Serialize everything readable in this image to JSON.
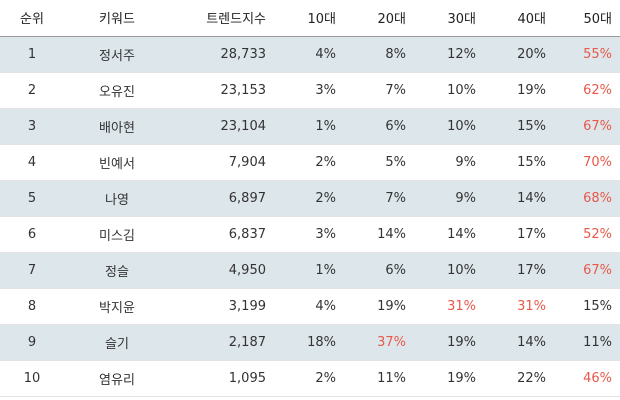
{
  "table": {
    "headers": {
      "rank": "순위",
      "keyword": "키워드",
      "trend": "트렌드지수",
      "age10": "10대",
      "age20": "20대",
      "age30": "30대",
      "age40": "40대",
      "age50": "50대"
    },
    "highlight_color": "#e8594a",
    "shade_color": "#dde6eb",
    "rows": [
      {
        "rank": "1",
        "keyword": "정서주",
        "trend": "28,733",
        "age10": "4%",
        "age20": "8%",
        "age30": "12%",
        "age40": "20%",
        "age50": "55%",
        "hl": "age50"
      },
      {
        "rank": "2",
        "keyword": "오유진",
        "trend": "23,153",
        "age10": "3%",
        "age20": "7%",
        "age30": "10%",
        "age40": "19%",
        "age50": "62%",
        "hl": "age50"
      },
      {
        "rank": "3",
        "keyword": "배아현",
        "trend": "23,104",
        "age10": "1%",
        "age20": "6%",
        "age30": "10%",
        "age40": "15%",
        "age50": "67%",
        "hl": "age50"
      },
      {
        "rank": "4",
        "keyword": "빈예서",
        "trend": "7,904",
        "age10": "2%",
        "age20": "5%",
        "age30": "9%",
        "age40": "15%",
        "age50": "70%",
        "hl": "age50"
      },
      {
        "rank": "5",
        "keyword": "나영",
        "trend": "6,897",
        "age10": "2%",
        "age20": "7%",
        "age30": "9%",
        "age40": "14%",
        "age50": "68%",
        "hl": "age50"
      },
      {
        "rank": "6",
        "keyword": "미스김",
        "trend": "6,837",
        "age10": "3%",
        "age20": "14%",
        "age30": "14%",
        "age40": "17%",
        "age50": "52%",
        "hl": "age50"
      },
      {
        "rank": "7",
        "keyword": "정슬",
        "trend": "4,950",
        "age10": "1%",
        "age20": "6%",
        "age30": "10%",
        "age40": "17%",
        "age50": "67%",
        "hl": "age50"
      },
      {
        "rank": "8",
        "keyword": "박지윤",
        "trend": "3,199",
        "age10": "4%",
        "age20": "19%",
        "age30": "31%",
        "age40": "31%",
        "age50": "15%",
        "hl": "age30,age40"
      },
      {
        "rank": "9",
        "keyword": "슬기",
        "trend": "2,187",
        "age10": "18%",
        "age20": "37%",
        "age30": "19%",
        "age40": "14%",
        "age50": "11%",
        "hl": "age20"
      },
      {
        "rank": "10",
        "keyword": "염유리",
        "trend": "1,095",
        "age10": "2%",
        "age20": "11%",
        "age30": "19%",
        "age40": "22%",
        "age50": "46%",
        "hl": "age50"
      }
    ]
  }
}
